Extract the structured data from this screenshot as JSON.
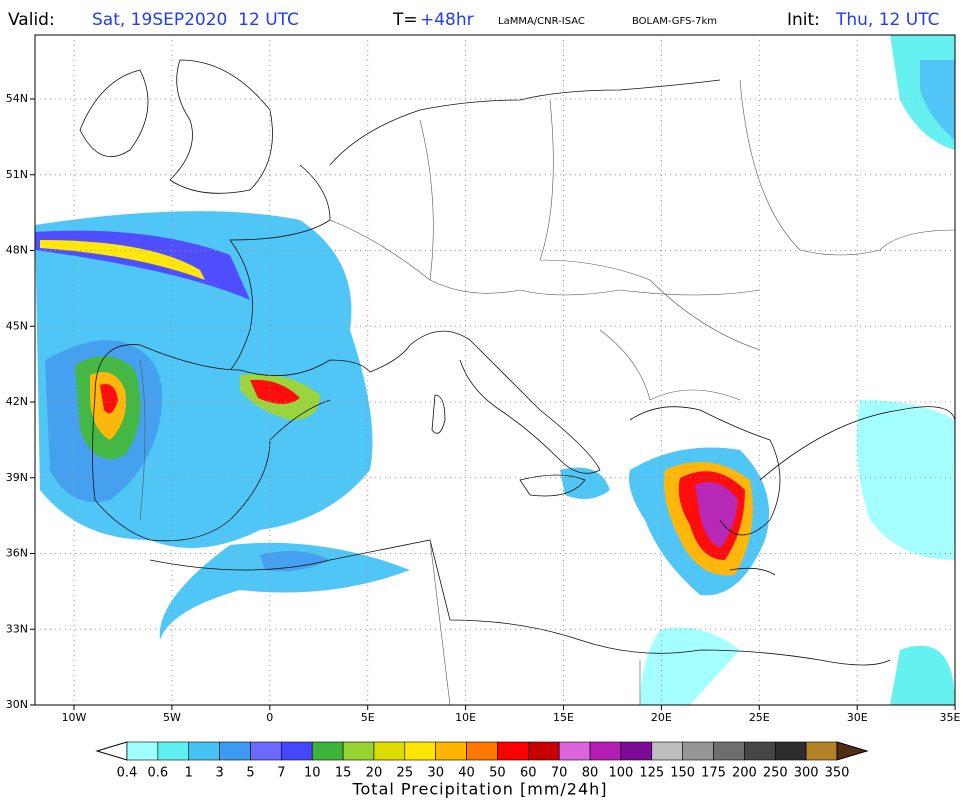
{
  "header": {
    "valid_label": "Valid:",
    "valid_time": "Sat, 19SEP2020  12 UTC",
    "lead_label": "T=",
    "lead_time": "+48hr",
    "source": "LaMMA/CNR-ISAC",
    "model": "BOLAM-GFS-7km",
    "init_label": "Init:",
    "init_time": "Thu, 12 UTC"
  },
  "map": {
    "lat_labels": [
      "54N",
      "51N",
      "48N",
      "45N",
      "42N",
      "39N",
      "36N",
      "33N",
      "30N"
    ],
    "lon_labels": [
      "10W",
      "5W",
      "0",
      "5E",
      "10E",
      "15E",
      "20E",
      "25E",
      "30E",
      "35E"
    ]
  },
  "colorbar": {
    "labels": [
      0.4,
      0.6,
      1,
      3,
      5,
      7,
      10,
      15,
      20,
      25,
      30,
      40,
      50,
      60,
      70,
      80,
      100,
      125,
      150,
      175,
      200,
      250,
      300,
      350
    ],
    "colors": [
      "#a0ffff",
      "#5ef0f0",
      "#46c3f5",
      "#3c9bf0",
      "#6a6aff",
      "#4646ff",
      "#3cb43c",
      "#96d232",
      "#dcdc00",
      "#ffe600",
      "#ffb400",
      "#ff7800",
      "#ff0000",
      "#c80000",
      "#dc64dc",
      "#b41eb4",
      "#7d0a96",
      "#bebebe",
      "#969696",
      "#6e6e6e",
      "#464646",
      "#2d2d2d",
      "#b48228"
    ],
    "under_color": "#ffffff",
    "over_color": "#502d14",
    "title": "Total Precipitation [mm/24h]"
  }
}
